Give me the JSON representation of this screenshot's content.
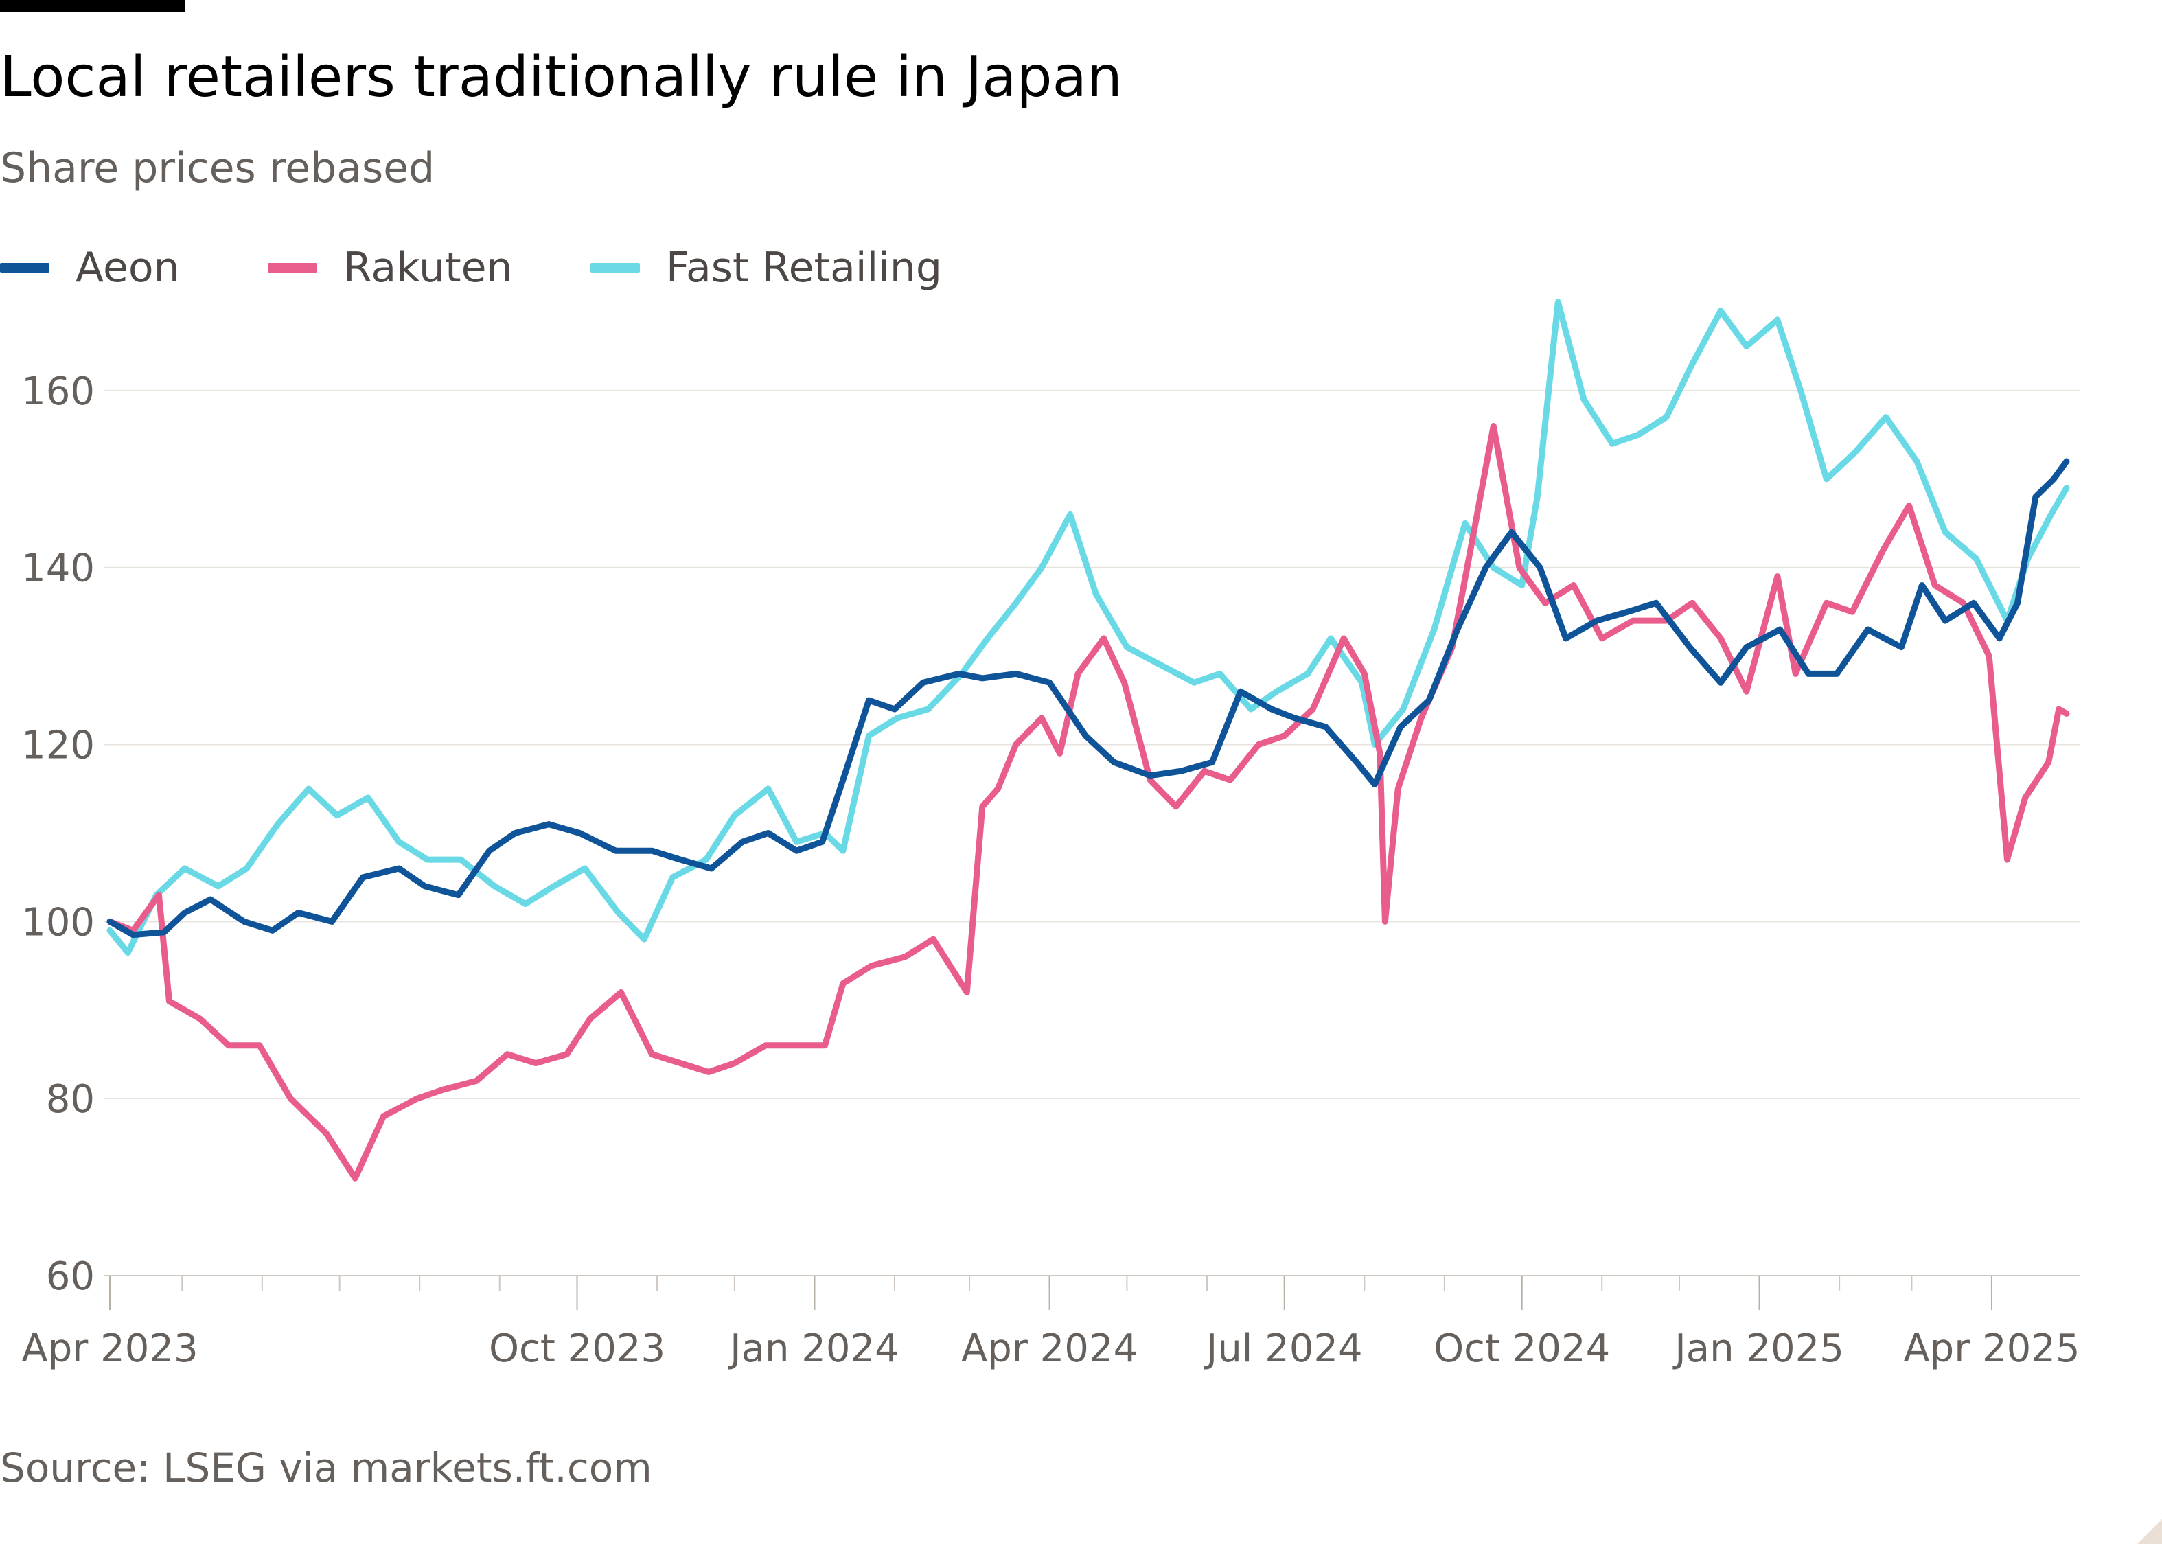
{
  "header": {
    "title": "Local retailers traditionally rule in Japan",
    "subtitle": "Share prices rebased"
  },
  "footer": {
    "source": "Source: LSEG via markets.ft.com"
  },
  "colors": {
    "aeon": "#0f5499",
    "rakuten": "#e95d8c",
    "fast_retailing": "#6ad9e6",
    "grid": "#e8e3dd",
    "axis_text": "#66605c"
  },
  "chart_data": {
    "type": "line",
    "title": "Local retailers traditionally rule in Japan",
    "subtitle": "Share prices rebased",
    "xlabel": "",
    "ylabel": "",
    "ylim": [
      60,
      170
    ],
    "yticks": [
      60,
      80,
      100,
      120,
      140,
      160
    ],
    "ytick_labels": [
      "60",
      "80",
      "100",
      "120",
      "140",
      "160"
    ],
    "x_range": [
      "2023-04-03",
      "2025-04-30"
    ],
    "xtick_labels": [
      {
        "label": "Apr 2023",
        "date": "2023-04-01"
      },
      {
        "label": "Oct 2023",
        "date": "2023-10-01"
      },
      {
        "label": "Jan 2024",
        "date": "2024-01-01"
      },
      {
        "label": "Apr 2024",
        "date": "2024-04-01"
      },
      {
        "label": "Jul 2024",
        "date": "2024-07-01"
      },
      {
        "label": "Oct 2024",
        "date": "2024-10-01"
      },
      {
        "label": "Jan 2025",
        "date": "2025-01-01"
      },
      {
        "label": "Apr 2025",
        "date": "2025-04-01"
      }
    ],
    "grid": true,
    "legend_position": "top-left",
    "series": [
      {
        "name": "Aeon",
        "color": "#0f5499",
        "points": [
          [
            "2023-04-03",
            100
          ],
          [
            "2023-04-12",
            98.5
          ],
          [
            "2023-04-24",
            98.8
          ],
          [
            "2023-05-02",
            101
          ],
          [
            "2023-05-12",
            102.5
          ],
          [
            "2023-05-25",
            100
          ],
          [
            "2023-06-05",
            99
          ],
          [
            "2023-06-15",
            101
          ],
          [
            "2023-06-28",
            100
          ],
          [
            "2023-07-10",
            105
          ],
          [
            "2023-07-24",
            106
          ],
          [
            "2023-08-03",
            104
          ],
          [
            "2023-08-16",
            103
          ],
          [
            "2023-08-28",
            108
          ],
          [
            "2023-09-07",
            110
          ],
          [
            "2023-09-20",
            111
          ],
          [
            "2023-10-02",
            110
          ],
          [
            "2023-10-16",
            108
          ],
          [
            "2023-10-30",
            108
          ],
          [
            "2023-11-10",
            107
          ],
          [
            "2023-11-22",
            106
          ],
          [
            "2023-12-04",
            109
          ],
          [
            "2023-12-14",
            110
          ],
          [
            "2023-12-25",
            108
          ],
          [
            "2024-01-04",
            109
          ],
          [
            "2024-01-12",
            116
          ],
          [
            "2024-01-22",
            125
          ],
          [
            "2024-02-01",
            124
          ],
          [
            "2024-02-12",
            127
          ],
          [
            "2024-02-26",
            128
          ],
          [
            "2024-03-06",
            127.5
          ],
          [
            "2024-03-19",
            128
          ],
          [
            "2024-04-01",
            127
          ],
          [
            "2024-04-15",
            121
          ],
          [
            "2024-04-26",
            118
          ],
          [
            "2024-05-10",
            116.5
          ],
          [
            "2024-05-22",
            117
          ],
          [
            "2024-06-03",
            118
          ],
          [
            "2024-06-14",
            126
          ],
          [
            "2024-06-26",
            124
          ],
          [
            "2024-07-05",
            123
          ],
          [
            "2024-07-17",
            122
          ],
          [
            "2024-07-29",
            118
          ],
          [
            "2024-08-05",
            115.5
          ],
          [
            "2024-08-15",
            122
          ],
          [
            "2024-08-26",
            125
          ],
          [
            "2024-09-06",
            133
          ],
          [
            "2024-09-17",
            140
          ],
          [
            "2024-09-27",
            144
          ],
          [
            "2024-10-08",
            140
          ],
          [
            "2024-10-18",
            132
          ],
          [
            "2024-10-30",
            134
          ],
          [
            "2024-11-11",
            135
          ],
          [
            "2024-11-22",
            136
          ],
          [
            "2024-12-05",
            131
          ],
          [
            "2024-12-17",
            127
          ],
          [
            "2024-12-27",
            131
          ],
          [
            "2025-01-09",
            133
          ],
          [
            "2025-01-20",
            128
          ],
          [
            "2025-01-31",
            128
          ],
          [
            "2025-02-12",
            133
          ],
          [
            "2025-02-25",
            131
          ],
          [
            "2025-03-05",
            138
          ],
          [
            "2025-03-14",
            134
          ],
          [
            "2025-03-25",
            136
          ],
          [
            "2025-04-04",
            132
          ],
          [
            "2025-04-11",
            136
          ],
          [
            "2025-04-18",
            148
          ],
          [
            "2025-04-25",
            150
          ],
          [
            "2025-04-30",
            152
          ]
        ]
      },
      {
        "name": "Rakuten",
        "color": "#e95d8c",
        "points": [
          [
            "2023-04-03",
            100
          ],
          [
            "2023-04-12",
            99
          ],
          [
            "2023-04-22",
            103
          ],
          [
            "2023-04-26",
            91
          ],
          [
            "2023-05-08",
            89
          ],
          [
            "2023-05-19",
            86
          ],
          [
            "2023-05-31",
            86
          ],
          [
            "2023-06-12",
            80
          ],
          [
            "2023-06-26",
            76
          ],
          [
            "2023-07-07",
            71
          ],
          [
            "2023-07-18",
            78
          ],
          [
            "2023-07-31",
            80
          ],
          [
            "2023-08-10",
            81
          ],
          [
            "2023-08-23",
            82
          ],
          [
            "2023-09-04",
            85
          ],
          [
            "2023-09-15",
            84
          ],
          [
            "2023-09-27",
            85
          ],
          [
            "2023-10-06",
            89
          ],
          [
            "2023-10-18",
            92
          ],
          [
            "2023-10-30",
            85
          ],
          [
            "2023-11-10",
            84
          ],
          [
            "2023-11-21",
            83
          ],
          [
            "2023-12-01",
            84
          ],
          [
            "2023-12-13",
            86
          ],
          [
            "2023-12-26",
            86
          ],
          [
            "2024-01-05",
            86
          ],
          [
            "2024-01-12",
            93
          ],
          [
            "2024-01-23",
            95
          ],
          [
            "2024-02-05",
            96
          ],
          [
            "2024-02-16",
            98
          ],
          [
            "2024-02-29",
            92
          ],
          [
            "2024-03-06",
            113
          ],
          [
            "2024-03-12",
            115
          ],
          [
            "2024-03-19",
            120
          ],
          [
            "2024-03-29",
            123
          ],
          [
            "2024-04-05",
            119
          ],
          [
            "2024-04-12",
            128
          ],
          [
            "2024-04-22",
            132
          ],
          [
            "2024-04-30",
            127
          ],
          [
            "2024-05-10",
            116
          ],
          [
            "2024-05-20",
            113
          ],
          [
            "2024-05-31",
            117
          ],
          [
            "2024-06-10",
            116
          ],
          [
            "2024-06-21",
            120
          ],
          [
            "2024-07-01",
            121
          ],
          [
            "2024-07-12",
            124
          ],
          [
            "2024-07-24",
            132
          ],
          [
            "2024-08-01",
            128
          ],
          [
            "2024-08-07",
            119
          ],
          [
            "2024-08-09",
            100
          ],
          [
            "2024-08-14",
            115
          ],
          [
            "2024-08-23",
            123
          ],
          [
            "2024-09-04",
            131
          ],
          [
            "2024-09-13",
            145
          ],
          [
            "2024-09-20",
            156
          ],
          [
            "2024-09-30",
            140
          ],
          [
            "2024-10-10",
            136
          ],
          [
            "2024-10-21",
            138
          ],
          [
            "2024-11-01",
            132
          ],
          [
            "2024-11-13",
            134
          ],
          [
            "2024-11-26",
            134
          ],
          [
            "2024-12-06",
            136
          ],
          [
            "2024-12-17",
            132
          ],
          [
            "2024-12-27",
            126
          ],
          [
            "2025-01-08",
            139
          ],
          [
            "2025-01-15",
            128
          ],
          [
            "2025-01-27",
            136
          ],
          [
            "2025-02-06",
            135
          ],
          [
            "2025-02-18",
            142
          ],
          [
            "2025-02-28",
            147
          ],
          [
            "2025-03-10",
            138
          ],
          [
            "2025-03-21",
            136
          ],
          [
            "2025-03-31",
            130
          ],
          [
            "2025-04-07",
            107
          ],
          [
            "2025-04-14",
            114
          ],
          [
            "2025-04-23",
            118
          ],
          [
            "2025-04-27",
            124
          ],
          [
            "2025-04-30",
            123.5
          ]
        ]
      },
      {
        "name": "Fast Retailing",
        "color": "#6ad9e6",
        "points": [
          [
            "2023-04-03",
            99
          ],
          [
            "2023-04-10",
            96.5
          ],
          [
            "2023-04-21",
            103
          ],
          [
            "2023-05-02",
            106
          ],
          [
            "2023-05-15",
            104
          ],
          [
            "2023-05-26",
            106
          ],
          [
            "2023-06-07",
            111
          ],
          [
            "2023-06-19",
            115
          ],
          [
            "2023-06-30",
            112
          ],
          [
            "2023-07-12",
            114
          ],
          [
            "2023-07-24",
            109
          ],
          [
            "2023-08-04",
            107
          ],
          [
            "2023-08-17",
            107
          ],
          [
            "2023-08-30",
            104
          ],
          [
            "2023-09-11",
            102
          ],
          [
            "2023-09-22",
            104
          ],
          [
            "2023-10-04",
            106
          ],
          [
            "2023-10-17",
            101
          ],
          [
            "2023-10-27",
            98
          ],
          [
            "2023-11-07",
            105
          ],
          [
            "2023-11-20",
            107
          ],
          [
            "2023-12-01",
            112
          ],
          [
            "2023-12-14",
            115
          ],
          [
            "2023-12-25",
            109
          ],
          [
            "2024-01-05",
            110
          ],
          [
            "2024-01-12",
            108
          ],
          [
            "2024-01-22",
            121
          ],
          [
            "2024-02-02",
            123
          ],
          [
            "2024-02-14",
            124
          ],
          [
            "2024-02-27",
            128
          ],
          [
            "2024-03-08",
            132
          ],
          [
            "2024-03-19",
            136
          ],
          [
            "2024-03-29",
            140
          ],
          [
            "2024-04-09",
            146
          ],
          [
            "2024-04-19",
            137
          ],
          [
            "2024-05-01",
            131
          ],
          [
            "2024-05-14",
            129
          ],
          [
            "2024-05-27",
            127
          ],
          [
            "2024-06-06",
            128
          ],
          [
            "2024-06-18",
            124
          ],
          [
            "2024-06-28",
            126
          ],
          [
            "2024-07-10",
            128
          ],
          [
            "2024-07-19",
            132
          ],
          [
            "2024-07-31",
            127
          ],
          [
            "2024-08-05",
            120
          ],
          [
            "2024-08-16",
            124
          ],
          [
            "2024-08-28",
            133
          ],
          [
            "2024-09-09",
            145
          ],
          [
            "2024-09-20",
            140
          ],
          [
            "2024-10-01",
            138
          ],
          [
            "2024-10-07",
            148
          ],
          [
            "2024-10-15",
            170
          ],
          [
            "2024-10-25",
            159
          ],
          [
            "2024-11-05",
            154
          ],
          [
            "2024-11-15",
            155
          ],
          [
            "2024-11-26",
            157
          ],
          [
            "2024-12-06",
            163
          ],
          [
            "2024-12-17",
            169
          ],
          [
            "2024-12-27",
            165
          ],
          [
            "2025-01-08",
            168
          ],
          [
            "2025-01-17",
            160
          ],
          [
            "2025-01-27",
            150
          ],
          [
            "2025-02-07",
            153
          ],
          [
            "2025-02-19",
            157
          ],
          [
            "2025-03-03",
            152
          ],
          [
            "2025-03-14",
            144
          ],
          [
            "2025-03-26",
            141
          ],
          [
            "2025-04-07",
            134
          ],
          [
            "2025-04-15",
            141
          ],
          [
            "2025-04-24",
            146
          ],
          [
            "2025-04-30",
            149
          ]
        ]
      }
    ]
  }
}
